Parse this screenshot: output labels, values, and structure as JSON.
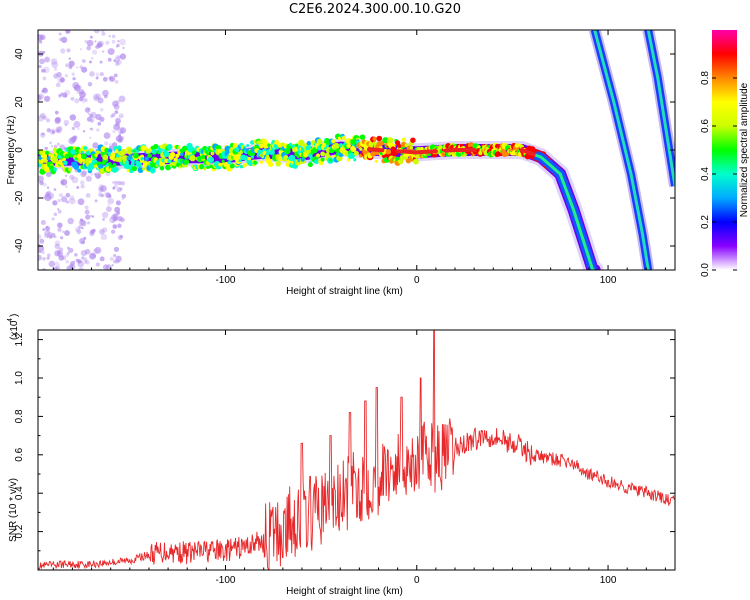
{
  "title": "C2E6.2024.300.00.10.G20",
  "chart_data": [
    {
      "type": "heatmap",
      "xlabel": "Height of straight line (km)",
      "ylabel": "Frequency (Hz)",
      "xlim": [
        -198,
        135
      ],
      "ylim": [
        -50,
        50
      ],
      "xticks": [
        -100,
        0,
        100
      ],
      "yticks": [
        -40,
        -20,
        0,
        20,
        40
      ],
      "xtick_labels": [
        "-100",
        "0",
        "100"
      ],
      "ytick_labels": [
        "-40",
        "-20",
        "0",
        "20",
        "40"
      ],
      "colorbar": {
        "label": "Normalized spectral amplitude",
        "range": [
          0,
          1
        ],
        "ticks": [
          0.0,
          0.2,
          0.4,
          0.6,
          0.8
        ],
        "tick_labels": [
          "0.0",
          "0.2",
          "0.4",
          "0.6",
          "0.8"
        ],
        "colors": [
          "#ffffff",
          "#8800ff",
          "#0000ff",
          "#00aaff",
          "#00ffcc",
          "#00ff00",
          "#ccff00",
          "#ffff00",
          "#ff8800",
          "#ff0000",
          "#ff00aa"
        ]
      },
      "main_trace": [
        {
          "x": -198,
          "y": -4
        },
        {
          "x": -150,
          "y": -4
        },
        {
          "x": -120,
          "y": -3
        },
        {
          "x": -100,
          "y": -3
        },
        {
          "x": -80,
          "y": -1
        },
        {
          "x": -60,
          "y": -2
        },
        {
          "x": -40,
          "y": 1
        },
        {
          "x": -20,
          "y": 0
        },
        {
          "x": 0,
          "y": -1
        },
        {
          "x": 20,
          "y": 0
        },
        {
          "x": 40,
          "y": 0
        },
        {
          "x": 55,
          "y": 0
        },
        {
          "x": 65,
          "y": -3
        },
        {
          "x": 75,
          "y": -10
        },
        {
          "x": 82,
          "y": -25
        },
        {
          "x": 88,
          "y": -40
        },
        {
          "x": 92,
          "y": -50
        }
      ],
      "streak_1": [
        {
          "x": 93,
          "y": 50
        },
        {
          "x": 103,
          "y": 20
        },
        {
          "x": 112,
          "y": -10
        },
        {
          "x": 118,
          "y": -35
        },
        {
          "x": 121,
          "y": -50
        }
      ],
      "streak_2": [
        {
          "x": 121,
          "y": 50
        },
        {
          "x": 126,
          "y": 30
        },
        {
          "x": 131,
          "y": 5
        },
        {
          "x": 135,
          "y": -15
        }
      ]
    },
    {
      "type": "line",
      "xlabel": "Height of straight line (km)",
      "ylabel": "SNR (10 * v/v)",
      "y_multiplier": "(x10",
      "y_multiplier_exp": "4",
      "y_multiplier_close": ")",
      "xlim": [
        -198,
        135
      ],
      "ylim": [
        0,
        1.25
      ],
      "xticks": [
        -100,
        0,
        100
      ],
      "yticks": [
        0.2,
        0.4,
        0.6,
        0.8,
        1.0,
        1.2
      ],
      "xtick_labels": [
        "-100",
        "0",
        "100"
      ],
      "ytick_labels": [
        "0.2",
        "0.4",
        "0.6",
        "0.8",
        "1.0",
        "1.2"
      ],
      "color": "#e8282a",
      "series": [
        {
          "x": [
            -198,
            -185,
            -170,
            -160,
            -150,
            -140,
            -130,
            -120,
            -110,
            -100,
            -90,
            -85,
            -80,
            -75,
            -70,
            -65,
            -60,
            -55,
            -50,
            -45,
            -40,
            -35,
            -30,
            -25,
            -20,
            -15,
            -10,
            -5,
            0,
            5,
            10,
            15,
            20,
            25,
            30,
            35,
            40,
            45,
            50,
            55,
            60,
            70,
            80,
            90,
            100,
            110,
            120,
            130,
            135
          ],
          "y": [
            0.02,
            0.03,
            0.03,
            0.04,
            0.05,
            0.08,
            0.1,
            0.09,
            0.1,
            0.1,
            0.12,
            0.14,
            0.15,
            0.18,
            0.2,
            0.26,
            0.28,
            0.3,
            0.32,
            0.35,
            0.36,
            0.4,
            0.44,
            0.46,
            0.48,
            0.52,
            0.54,
            0.56,
            0.58,
            0.6,
            0.58,
            0.6,
            0.63,
            0.66,
            0.68,
            0.7,
            0.7,
            0.68,
            0.66,
            0.64,
            0.6,
            0.58,
            0.56,
            0.5,
            0.46,
            0.43,
            0.4,
            0.37,
            0.35
          ]
        }
      ],
      "spikes": [
        {
          "x": -60,
          "y": 0.66
        },
        {
          "x": -45,
          "y": 0.7
        },
        {
          "x": -35,
          "y": 0.82
        },
        {
          "x": -27,
          "y": 0.88
        },
        {
          "x": -21,
          "y": 0.95
        },
        {
          "x": -8,
          "y": 0.9
        },
        {
          "x": 2,
          "y": 1.0
        },
        {
          "x": 9,
          "y": 1.25
        }
      ]
    }
  ]
}
